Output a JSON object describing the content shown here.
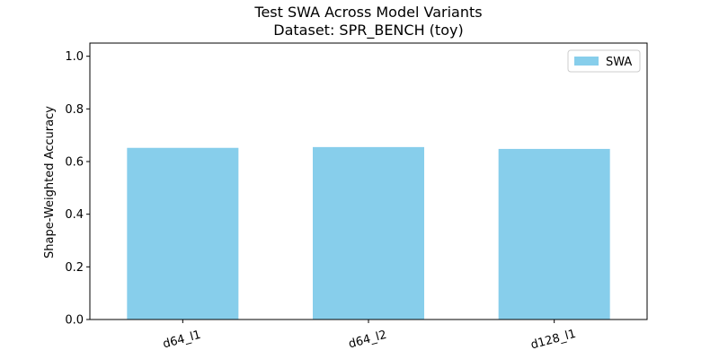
{
  "chart_data": {
    "type": "bar",
    "title": "Test SWA Across Model Variants",
    "subtitle": "Dataset: SPR_BENCH (toy)",
    "xlabel": "",
    "ylabel": "Shape-Weighted Accuracy",
    "categories": [
      "d64_l1",
      "d64_l2",
      "d128_l1"
    ],
    "series": [
      {
        "name": "SWA",
        "values": [
          0.652,
          0.655,
          0.648
        ],
        "color": "#87ceeb"
      }
    ],
    "ylim": [
      0,
      1.05
    ],
    "yticks": [
      0.0,
      0.2,
      0.4,
      0.6,
      0.8,
      1.0
    ],
    "ytick_labels": [
      "0.0",
      "0.2",
      "0.4",
      "0.6",
      "0.8",
      "1.0"
    ],
    "legend_position": "top-right",
    "grid": false,
    "xtick_rotation": -15
  }
}
